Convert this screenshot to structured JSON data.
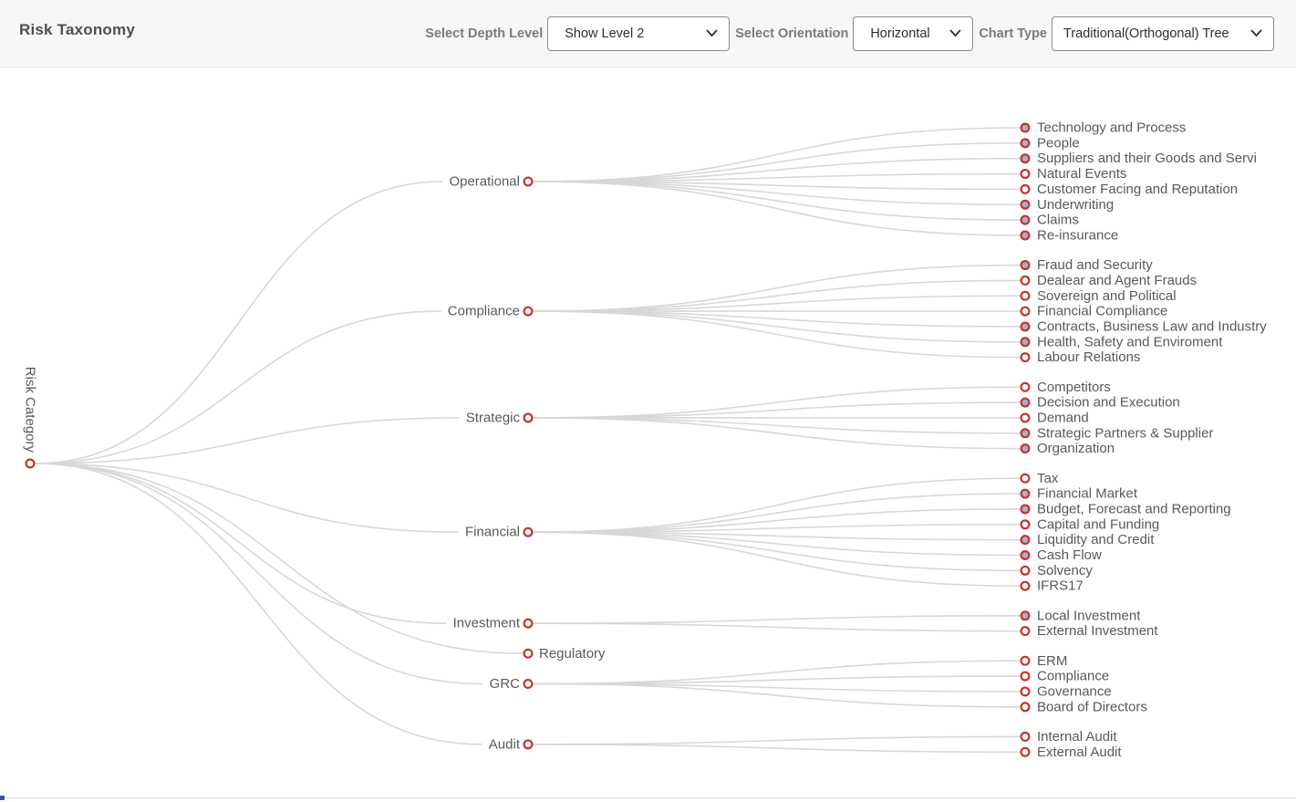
{
  "header": {
    "title": "Risk Taxonomy",
    "controls": [
      {
        "label": "Select Depth Level",
        "value": "Show Level 2"
      },
      {
        "label": "Select Orientation",
        "value": "Horizontal"
      },
      {
        "label": "Chart Type",
        "value": "Traditional(Orthogonal) Tree"
      }
    ]
  },
  "colors": {
    "node_ring": "#c4332e",
    "node_collapsed_fill": "#a7b0c4",
    "node_leaf_fill": "#ffffff",
    "edge": "#d7d7d7",
    "label": "#595959"
  },
  "tree": {
    "root": "Risk Category",
    "children": [
      {
        "name": "Operational",
        "children": [
          {
            "name": "Technology and Process",
            "filled": true
          },
          {
            "name": "People",
            "filled": true
          },
          {
            "name": "Suppliers and their Goods and Servi",
            "filled": true
          },
          {
            "name": "Natural Events",
            "filled": false
          },
          {
            "name": "Customer Facing and Reputation",
            "filled": false
          },
          {
            "name": "Underwriting",
            "filled": true
          },
          {
            "name": "Claims",
            "filled": true
          },
          {
            "name": "Re-insurance",
            "filled": true
          }
        ]
      },
      {
        "name": "Compliance",
        "children": [
          {
            "name": "Fraud and Security",
            "filled": true
          },
          {
            "name": "Dealear and Agent Frauds",
            "filled": false
          },
          {
            "name": "Sovereign and Political",
            "filled": false
          },
          {
            "name": "Financial Compliance",
            "filled": false
          },
          {
            "name": "Contracts, Business Law and Industry",
            "filled": true
          },
          {
            "name": "Health, Safety and Enviroment",
            "filled": true
          },
          {
            "name": "Labour Relations",
            "filled": false
          }
        ]
      },
      {
        "name": "Strategic",
        "children": [
          {
            "name": "Competitors",
            "filled": false
          },
          {
            "name": "Decision and Execution",
            "filled": true
          },
          {
            "name": "Demand",
            "filled": false
          },
          {
            "name": "Strategic Partners & Supplier",
            "filled": true
          },
          {
            "name": "Organization",
            "filled": true
          }
        ]
      },
      {
        "name": "Financial",
        "children": [
          {
            "name": "Tax",
            "filled": false
          },
          {
            "name": "Financial Market",
            "filled": true
          },
          {
            "name": "Budget, Forecast and Reporting",
            "filled": true
          },
          {
            "name": "Capital and Funding",
            "filled": false
          },
          {
            "name": "Liquidity and Credit",
            "filled": true
          },
          {
            "name": "Cash Flow",
            "filled": true
          },
          {
            "name": "Solvency",
            "filled": false
          },
          {
            "name": "IFRS17",
            "filled": false
          }
        ]
      },
      {
        "name": "Investment",
        "children": [
          {
            "name": "Local Investment",
            "filled": true
          },
          {
            "name": "External Investment",
            "filled": false
          }
        ]
      },
      {
        "name": "Regulatory",
        "label_side": "right",
        "children": []
      },
      {
        "name": "GRC",
        "children": [
          {
            "name": "ERM",
            "filled": false
          },
          {
            "name": "Compliance",
            "filled": false
          },
          {
            "name": "Governance",
            "filled": false
          },
          {
            "name": "Board of Directors",
            "filled": false
          }
        ]
      },
      {
        "name": "Audit",
        "children": [
          {
            "name": "Internal Audit",
            "filled": false
          },
          {
            "name": "External Audit",
            "filled": false
          }
        ]
      }
    ]
  }
}
